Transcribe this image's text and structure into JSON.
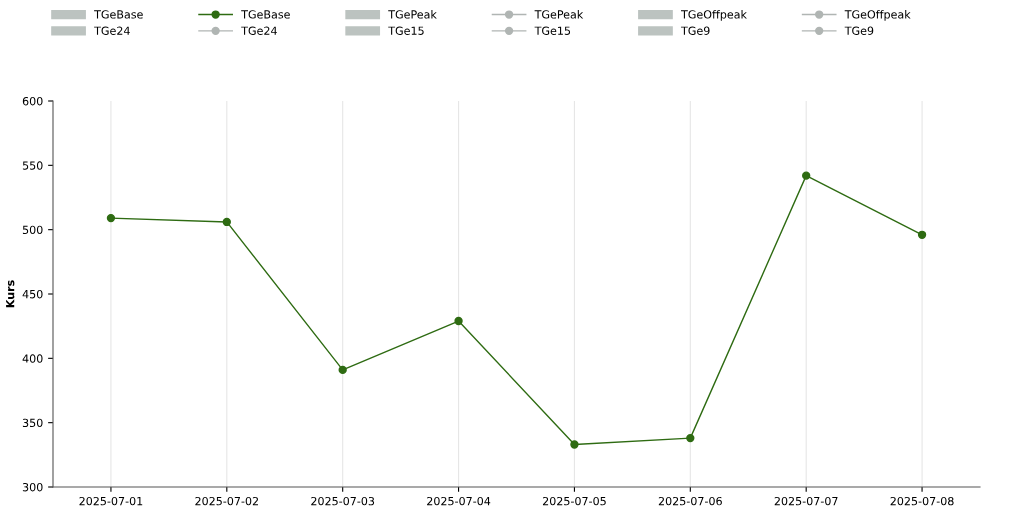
{
  "chart_data": {
    "type": "line",
    "ylabel": "Kurs",
    "categories": [
      "2025-07-01",
      "2025-07-02",
      "2025-07-03",
      "2025-07-04",
      "2025-07-05",
      "2025-07-06",
      "2025-07-07",
      "2025-07-08"
    ],
    "series": [
      {
        "name": "TGeBase",
        "type": "bar",
        "color": "#bcc3c0",
        "values": [
          null,
          null,
          null,
          null,
          null,
          null,
          null,
          null
        ]
      },
      {
        "name": "TGeBase",
        "color": "#2e6b12",
        "values": [
          509,
          506,
          391,
          429,
          333,
          338,
          542,
          496
        ]
      },
      {
        "name": "TGePeak",
        "type": "bar",
        "color": "#bcc3c0",
        "values": [
          null,
          null,
          null,
          null,
          null,
          null,
          null,
          null
        ]
      },
      {
        "name": "TGePeak",
        "type": "line",
        "color": "#b0b5b3",
        "values": [
          null,
          null,
          null,
          null,
          null,
          null,
          null,
          null
        ]
      },
      {
        "name": "TGeOffpeak",
        "type": "bar",
        "color": "#bcc3c0",
        "values": [
          null,
          null,
          null,
          null,
          null,
          null,
          null,
          null
        ]
      },
      {
        "name": "TGeOffpeak",
        "type": "line",
        "color": "#b0b5b3",
        "values": [
          null,
          null,
          null,
          null,
          null,
          null,
          null,
          null
        ]
      },
      {
        "name": "TGe24",
        "type": "bar",
        "color": "#bcc3c0",
        "values": [
          null,
          null,
          null,
          null,
          null,
          null,
          null,
          null
        ]
      },
      {
        "name": "TGe24",
        "type": "line",
        "color": "#b0b5b3",
        "values": [
          null,
          null,
          null,
          null,
          null,
          null,
          null,
          null
        ]
      },
      {
        "name": "TGe15",
        "type": "bar",
        "color": "#bcc3c0",
        "values": [
          null,
          null,
          null,
          null,
          null,
          null,
          null,
          null
        ]
      },
      {
        "name": "TGe15",
        "type": "line",
        "color": "#b0b5b3",
        "values": [
          null,
          null,
          null,
          null,
          null,
          null,
          null,
          null
        ]
      },
      {
        "name": "TGe9",
        "type": "bar",
        "color": "#bcc3c0",
        "values": [
          null,
          null,
          null,
          null,
          null,
          null,
          null,
          null
        ]
      },
      {
        "name": "TGe9",
        "type": "line",
        "color": "#b0b5b3",
        "values": [
          null,
          null,
          null,
          null,
          null,
          null,
          null,
          null
        ]
      }
    ],
    "ylim": [
      300,
      600
    ],
    "yticks": [
      300,
      350,
      400,
      450,
      500,
      550,
      600
    ],
    "grid": "x",
    "legend": "top",
    "marker": "circle",
    "line_style": "solid"
  }
}
